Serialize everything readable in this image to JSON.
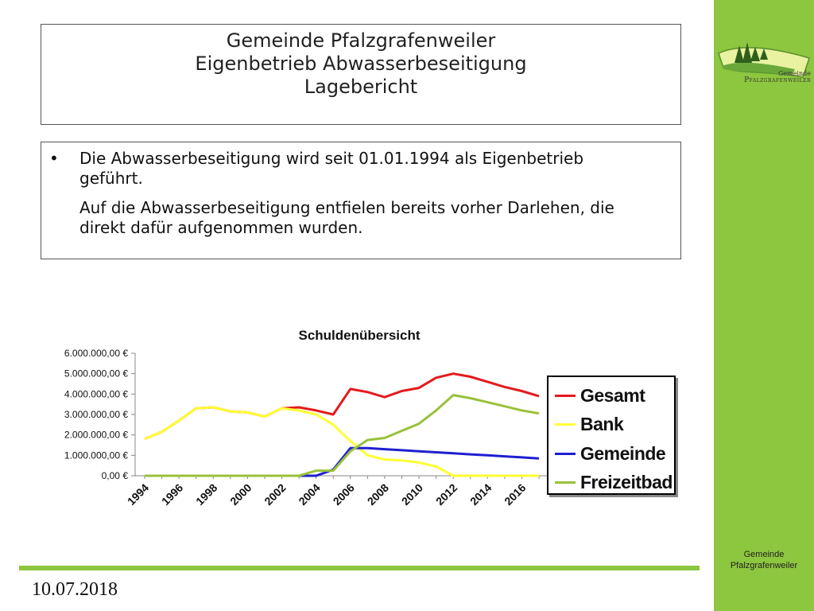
{
  "slide": {
    "title_lines": [
      "Gemeinde Pfalzgrafenweiler",
      "Eigenbetrieb Abwasserbeseitigung",
      "Lagebericht"
    ],
    "bullet_marker": "•",
    "bullet_text": "Die Abwasserbeseitigung wird seit 01.01.1994 als Eigenbetrieb geführt.",
    "paragraph_text": "Auf die Abwasserbeseitigung entfielen bereits vorher Darlehen, die direkt dafür aufgenommen wurden.",
    "date": "10.07.2018"
  },
  "logo": {
    "line1": "Gemeinde",
    "line2": "Pfalzgrafenweiler"
  },
  "sidebar": {
    "footer_line1": "Gemeinde",
    "footer_line2": "Pfalzgrafenweiler"
  },
  "colors": {
    "sidebar": "#8dc63f",
    "gesamt": "#e41a1c",
    "bank": "#ffff33",
    "gemeinde": "#1f1fd0",
    "freizeitbad": "#99c13b"
  },
  "chart_data": {
    "type": "line",
    "title": "Schuldenübersicht",
    "xlabel": "",
    "ylabel": "",
    "x": [
      1994,
      1995,
      1996,
      1997,
      1998,
      1999,
      2000,
      2001,
      2002,
      2003,
      2004,
      2005,
      2006,
      2007,
      2008,
      2009,
      2010,
      2011,
      2012,
      2013,
      2014,
      2015,
      2016,
      2017
    ],
    "x_tick_labels": [
      "1994",
      "1996",
      "1998",
      "2000",
      "2002",
      "2004",
      "2006",
      "2008",
      "2010",
      "2012",
      "2014",
      "2016"
    ],
    "y_tick_labels": [
      "0,00 €",
      "1.000.000,00 €",
      "2.000.000,00 €",
      "3.000.000,00 €",
      "4.000.000,00 €",
      "5.000.000,00 €",
      "6.000.000,00 €"
    ],
    "ylim": [
      0,
      6000000
    ],
    "grid": false,
    "legend_position": "right",
    "series": [
      {
        "name": "Gesamt",
        "color": "#e41a1c",
        "values": [
          1800000,
          2150000,
          2700000,
          3300000,
          3350000,
          3150000,
          3100000,
          2900000,
          3300000,
          3350000,
          3200000,
          3000000,
          4250000,
          4100000,
          3850000,
          4150000,
          4300000,
          4800000,
          5000000,
          4850000,
          4600000,
          4350000,
          4150000,
          3900000
        ]
      },
      {
        "name": "Bank",
        "color": "#ffff33",
        "values": [
          1800000,
          2150000,
          2700000,
          3300000,
          3350000,
          3150000,
          3100000,
          2900000,
          3300000,
          3200000,
          3000000,
          2500000,
          1700000,
          1000000,
          800000,
          750000,
          650000,
          450000,
          0,
          0,
          0,
          0,
          0,
          0
        ]
      },
      {
        "name": "Gemeinde",
        "color": "#1f1fd0",
        "values": [
          0,
          0,
          0,
          0,
          0,
          0,
          0,
          0,
          0,
          0,
          0,
          300000,
          1350000,
          1350000,
          1300000,
          1250000,
          1200000,
          1150000,
          1100000,
          1050000,
          1000000,
          950000,
          900000,
          850000
        ]
      },
      {
        "name": "Freizeitbad",
        "color": "#99c13b",
        "values": [
          0,
          0,
          0,
          0,
          0,
          0,
          0,
          0,
          0,
          0,
          250000,
          250000,
          1200000,
          1750000,
          1850000,
          2200000,
          2550000,
          3200000,
          3950000,
          3800000,
          3600000,
          3400000,
          3200000,
          3050000
        ]
      }
    ]
  }
}
